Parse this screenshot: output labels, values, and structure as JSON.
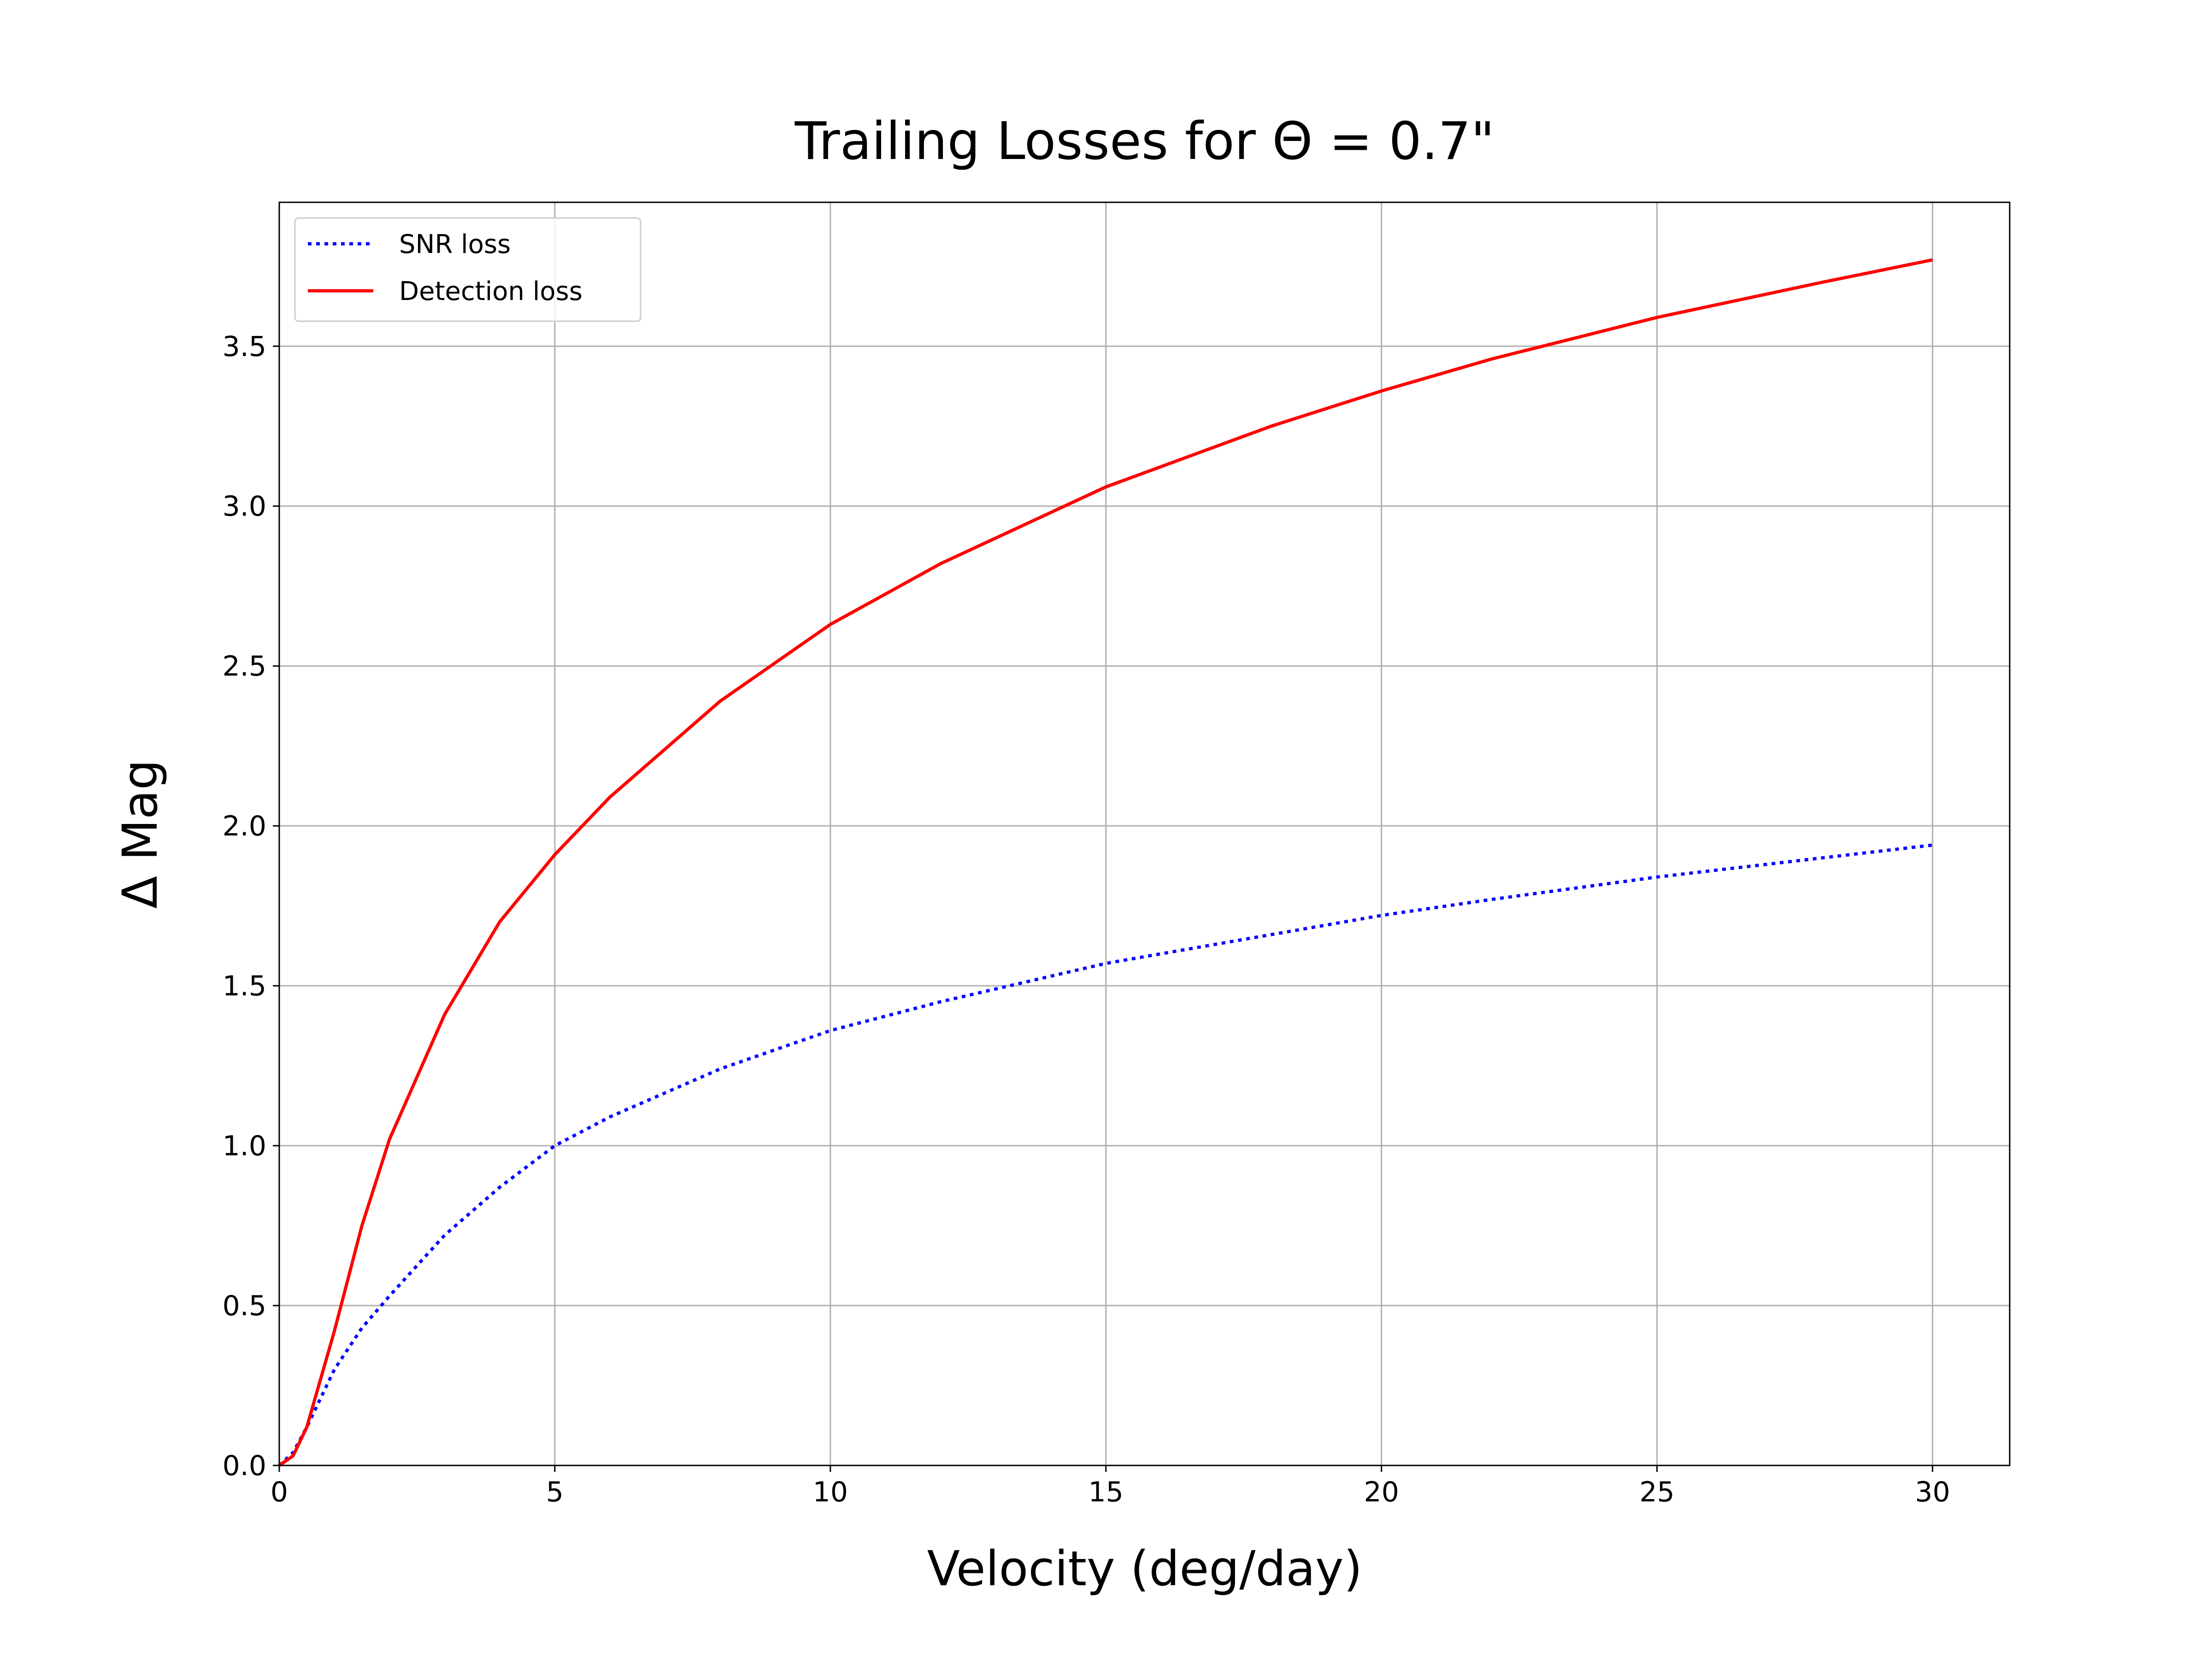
{
  "chart_data": {
    "type": "line",
    "title": "Trailing Losses for Θ = 0.7\"",
    "x_label": "Velocity (deg/day)",
    "y_label": "Δ Mag",
    "x": [
      0,
      0.25,
      0.5,
      1,
      1.5,
      2,
      3,
      4,
      5,
      6,
      8,
      10,
      12,
      15,
      18,
      20,
      22,
      25,
      28,
      30
    ],
    "series": [
      {
        "name": "SNR loss",
        "color": "#0000ff",
        "style": "dotted",
        "values": [
          0,
          0.04,
          0.12,
          0.3,
          0.43,
          0.53,
          0.72,
          0.87,
          1.0,
          1.09,
          1.24,
          1.36,
          1.45,
          1.57,
          1.66,
          1.72,
          1.77,
          1.84,
          1.9,
          1.94
        ]
      },
      {
        "name": "Detection loss",
        "color": "#ff0000",
        "style": "solid",
        "values": [
          0,
          0.03,
          0.12,
          0.42,
          0.75,
          1.02,
          1.41,
          1.7,
          1.91,
          2.09,
          2.39,
          2.63,
          2.82,
          3.06,
          3.25,
          3.36,
          3.46,
          3.59,
          3.7,
          3.77
        ]
      }
    ],
    "xlim": [
      0,
      31.4
    ],
    "ylim": [
      0,
      3.95
    ],
    "xticks": [
      0,
      5,
      10,
      15,
      20,
      25,
      30
    ],
    "yticks": [
      {
        "value": 0,
        "label": "0.0"
      },
      0.5,
      {
        "value": 1,
        "label": "1.0"
      },
      1.5,
      {
        "value": 2,
        "label": "2.0"
      },
      2.5,
      {
        "value": 3,
        "label": "3.0"
      },
      3.5
    ],
    "grid": true,
    "legend": "upper left"
  }
}
